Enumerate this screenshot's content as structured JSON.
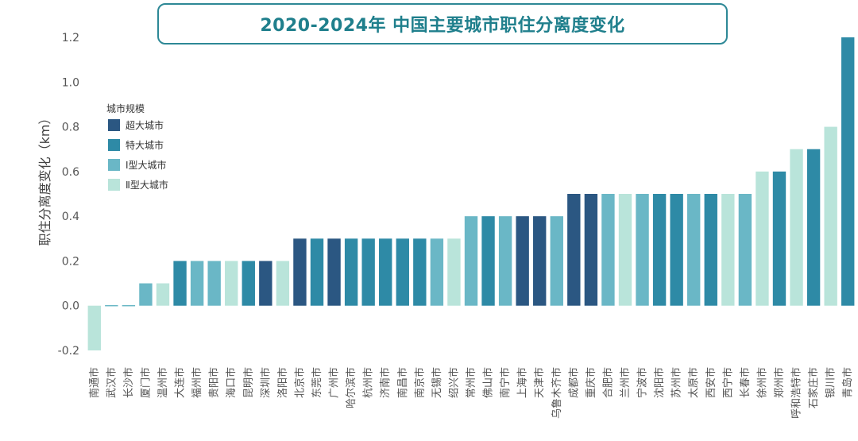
{
  "title": "2020-2024年 中国主要城市职住分离度变化",
  "chart_data": {
    "type": "bar",
    "title": "2020-2024年 中国主要城市职住分离度变化",
    "xlabel": "",
    "ylabel": "职住分离度变化（km）",
    "ylim": [
      -0.2,
      1.2
    ],
    "yticks": [
      "-0.2",
      "0.0",
      "0.2",
      "0.4",
      "0.6",
      "0.8",
      "1.0",
      "1.2"
    ],
    "grid": false,
    "legend": {
      "title": "城市规模",
      "placement": "top-left",
      "items": [
        {
          "key": "super",
          "label": "超大城市",
          "color": "#2b5782"
        },
        {
          "key": "mega",
          "label": "特大城市",
          "color": "#2e8aa6"
        },
        {
          "key": "large1",
          "label": "Ⅰ型大城市",
          "color": "#6ab7c6"
        },
        {
          "key": "large2",
          "label": "Ⅱ型大城市",
          "color": "#b9e4da"
        }
      ]
    },
    "categories": [
      "南通市",
      "武汉市",
      "长沙市",
      "厦门市",
      "温州市",
      "大连市",
      "福州市",
      "贵阳市",
      "海口市",
      "昆明市",
      "深圳市",
      "洛阳市",
      "北京市",
      "东莞市",
      "广州市",
      "哈尔滨市",
      "杭州市",
      "济南市",
      "南昌市",
      "南京市",
      "无锡市",
      "绍兴市",
      "常州市",
      "佛山市",
      "南宁市",
      "上海市",
      "天津市",
      "乌鲁木齐市",
      "成都市",
      "重庆市",
      "合肥市",
      "兰州市",
      "宁波市",
      "沈阳市",
      "苏州市",
      "太原市",
      "西安市",
      "西宁市",
      "长春市",
      "徐州市",
      "郑州市",
      "呼和浩特市",
      "石家庄市",
      "银川市",
      "青岛市"
    ],
    "values": [
      -0.2,
      0.0,
      0.0,
      0.1,
      0.1,
      0.2,
      0.2,
      0.2,
      0.2,
      0.2,
      0.2,
      0.2,
      0.3,
      0.3,
      0.3,
      0.3,
      0.3,
      0.3,
      0.3,
      0.3,
      0.3,
      0.3,
      0.4,
      0.4,
      0.4,
      0.4,
      0.4,
      0.4,
      0.5,
      0.5,
      0.5,
      0.5,
      0.5,
      0.5,
      0.5,
      0.5,
      0.5,
      0.5,
      0.5,
      0.6,
      0.6,
      0.7,
      0.7,
      0.8,
      1.2
    ],
    "city_size": [
      "large2",
      "large1",
      "large1",
      "large1",
      "large2",
      "mega",
      "large1",
      "large1",
      "large2",
      "mega",
      "super",
      "large2",
      "super",
      "mega",
      "super",
      "mega",
      "mega",
      "mega",
      "mega",
      "mega",
      "large1",
      "large2",
      "large1",
      "mega",
      "large1",
      "super",
      "super",
      "large1",
      "super",
      "super",
      "large1",
      "large2",
      "large1",
      "mega",
      "mega",
      "large1",
      "mega",
      "large2",
      "large1",
      "large2",
      "mega",
      "large2",
      "mega",
      "large2",
      "mega"
    ]
  }
}
